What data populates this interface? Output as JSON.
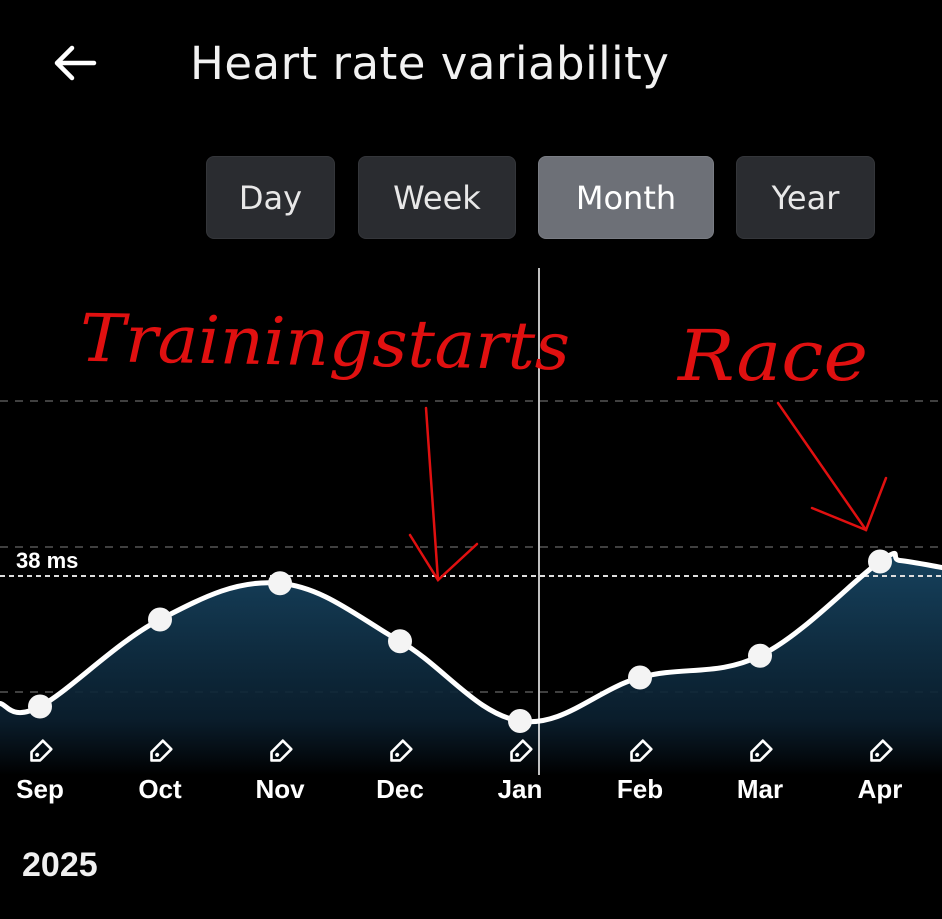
{
  "header": {
    "back_icon": "arrow-left-icon",
    "title": "Heart rate variability"
  },
  "tabs": [
    {
      "label": "Day",
      "active": false
    },
    {
      "label": "Week",
      "active": false
    },
    {
      "label": "Month",
      "active": true
    },
    {
      "label": "Year",
      "active": false
    }
  ],
  "chart_data": {
    "type": "area",
    "x": [
      "Sep",
      "Oct",
      "Nov",
      "Dec",
      "Jan",
      "Feb",
      "Mar",
      "Apr"
    ],
    "values": [
      29,
      35,
      37.5,
      33.5,
      28,
      31,
      32.5,
      39
    ],
    "reference_line": {
      "value": 38,
      "label": "38 ms"
    },
    "tick_icon": "tag-icon",
    "year_label": "2025",
    "line_color": "#ffffff",
    "fill_color": "#16425e",
    "annotations": [
      {
        "text": "Trainingstarts",
        "color": "#e01010"
      },
      {
        "text": "Race",
        "color": "#e01010"
      }
    ]
  }
}
